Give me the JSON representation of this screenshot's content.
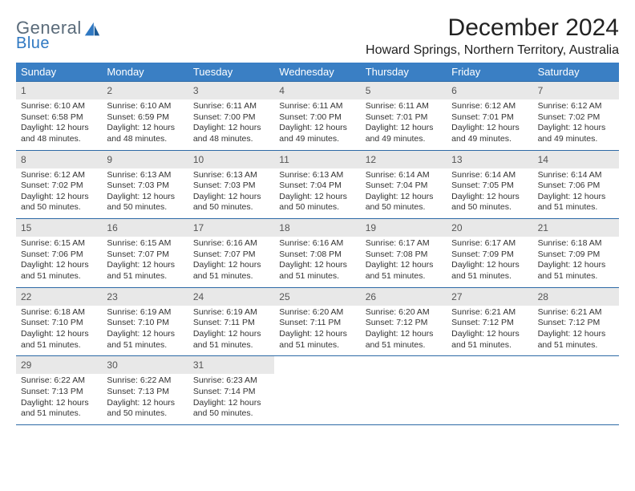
{
  "logo": {
    "word1": "General",
    "word2": "Blue"
  },
  "title": "December 2024",
  "location": "Howard Springs, Northern Territory, Australia",
  "day_names": [
    "Sunday",
    "Monday",
    "Tuesday",
    "Wednesday",
    "Thursday",
    "Friday",
    "Saturday"
  ],
  "colors": {
    "header_bg": "#3a7fc4",
    "header_fg": "#ffffff",
    "rule": "#2d6aa6",
    "band": "#e8e8e8",
    "logo_gray": "#5a6b7a",
    "logo_blue": "#2f78c2"
  },
  "days": [
    {
      "n": 1,
      "sunrise": "6:10 AM",
      "sunset": "6:58 PM",
      "daylight": "12 hours and 48 minutes."
    },
    {
      "n": 2,
      "sunrise": "6:10 AM",
      "sunset": "6:59 PM",
      "daylight": "12 hours and 48 minutes."
    },
    {
      "n": 3,
      "sunrise": "6:11 AM",
      "sunset": "7:00 PM",
      "daylight": "12 hours and 48 minutes."
    },
    {
      "n": 4,
      "sunrise": "6:11 AM",
      "sunset": "7:00 PM",
      "daylight": "12 hours and 49 minutes."
    },
    {
      "n": 5,
      "sunrise": "6:11 AM",
      "sunset": "7:01 PM",
      "daylight": "12 hours and 49 minutes."
    },
    {
      "n": 6,
      "sunrise": "6:12 AM",
      "sunset": "7:01 PM",
      "daylight": "12 hours and 49 minutes."
    },
    {
      "n": 7,
      "sunrise": "6:12 AM",
      "sunset": "7:02 PM",
      "daylight": "12 hours and 49 minutes."
    },
    {
      "n": 8,
      "sunrise": "6:12 AM",
      "sunset": "7:02 PM",
      "daylight": "12 hours and 50 minutes."
    },
    {
      "n": 9,
      "sunrise": "6:13 AM",
      "sunset": "7:03 PM",
      "daylight": "12 hours and 50 minutes."
    },
    {
      "n": 10,
      "sunrise": "6:13 AM",
      "sunset": "7:03 PM",
      "daylight": "12 hours and 50 minutes."
    },
    {
      "n": 11,
      "sunrise": "6:13 AM",
      "sunset": "7:04 PM",
      "daylight": "12 hours and 50 minutes."
    },
    {
      "n": 12,
      "sunrise": "6:14 AM",
      "sunset": "7:04 PM",
      "daylight": "12 hours and 50 minutes."
    },
    {
      "n": 13,
      "sunrise": "6:14 AM",
      "sunset": "7:05 PM",
      "daylight": "12 hours and 50 minutes."
    },
    {
      "n": 14,
      "sunrise": "6:14 AM",
      "sunset": "7:06 PM",
      "daylight": "12 hours and 51 minutes."
    },
    {
      "n": 15,
      "sunrise": "6:15 AM",
      "sunset": "7:06 PM",
      "daylight": "12 hours and 51 minutes."
    },
    {
      "n": 16,
      "sunrise": "6:15 AM",
      "sunset": "7:07 PM",
      "daylight": "12 hours and 51 minutes."
    },
    {
      "n": 17,
      "sunrise": "6:16 AM",
      "sunset": "7:07 PM",
      "daylight": "12 hours and 51 minutes."
    },
    {
      "n": 18,
      "sunrise": "6:16 AM",
      "sunset": "7:08 PM",
      "daylight": "12 hours and 51 minutes."
    },
    {
      "n": 19,
      "sunrise": "6:17 AM",
      "sunset": "7:08 PM",
      "daylight": "12 hours and 51 minutes."
    },
    {
      "n": 20,
      "sunrise": "6:17 AM",
      "sunset": "7:09 PM",
      "daylight": "12 hours and 51 minutes."
    },
    {
      "n": 21,
      "sunrise": "6:18 AM",
      "sunset": "7:09 PM",
      "daylight": "12 hours and 51 minutes."
    },
    {
      "n": 22,
      "sunrise": "6:18 AM",
      "sunset": "7:10 PM",
      "daylight": "12 hours and 51 minutes."
    },
    {
      "n": 23,
      "sunrise": "6:19 AM",
      "sunset": "7:10 PM",
      "daylight": "12 hours and 51 minutes."
    },
    {
      "n": 24,
      "sunrise": "6:19 AM",
      "sunset": "7:11 PM",
      "daylight": "12 hours and 51 minutes."
    },
    {
      "n": 25,
      "sunrise": "6:20 AM",
      "sunset": "7:11 PM",
      "daylight": "12 hours and 51 minutes."
    },
    {
      "n": 26,
      "sunrise": "6:20 AM",
      "sunset": "7:12 PM",
      "daylight": "12 hours and 51 minutes."
    },
    {
      "n": 27,
      "sunrise": "6:21 AM",
      "sunset": "7:12 PM",
      "daylight": "12 hours and 51 minutes."
    },
    {
      "n": 28,
      "sunrise": "6:21 AM",
      "sunset": "7:12 PM",
      "daylight": "12 hours and 51 minutes."
    },
    {
      "n": 29,
      "sunrise": "6:22 AM",
      "sunset": "7:13 PM",
      "daylight": "12 hours and 51 minutes."
    },
    {
      "n": 30,
      "sunrise": "6:22 AM",
      "sunset": "7:13 PM",
      "daylight": "12 hours and 50 minutes."
    },
    {
      "n": 31,
      "sunrise": "6:23 AM",
      "sunset": "7:14 PM",
      "daylight": "12 hours and 50 minutes."
    }
  ],
  "labels": {
    "sunrise": "Sunrise: ",
    "sunset": "Sunset: ",
    "daylight": "Daylight: "
  }
}
